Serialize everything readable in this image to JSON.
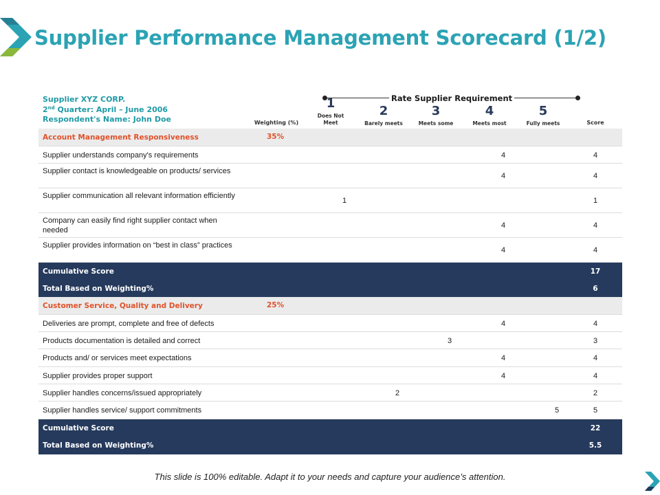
{
  "title": "Supplier Performance Management Scorecard (1/2)",
  "info": {
    "supplier": "Supplier XYZ CORP.",
    "quarter_num": "2",
    "quarter_sup": "nd",
    "quarter_text": " Quarter: April – June 2006",
    "respondent": "Respondent's Name: John Doe"
  },
  "rate_label": "Rate Supplier Requirement",
  "scale": [
    {
      "num": "1",
      "caption": "Does Not Meet"
    },
    {
      "num": "2",
      "caption": "Barely meets"
    },
    {
      "num": "3",
      "caption": "Meets some"
    },
    {
      "num": "4",
      "caption": "Meets most"
    },
    {
      "num": "5",
      "caption": "Fully meets"
    }
  ],
  "headers": {
    "weighting": "Weighting (%)",
    "score": "Score"
  },
  "rows": [
    {
      "type": "sec",
      "label": "Account Management Responsiveness",
      "weight": "35%"
    },
    {
      "type": "item",
      "label": "Supplier understands company's requirements",
      "rating": 4,
      "value": "4",
      "score": "4"
    },
    {
      "type": "item",
      "label": "Supplier contact is knowledgeable on products/ services",
      "rating": 4,
      "value": "4",
      "score": "4"
    },
    {
      "type": "item",
      "label": "Supplier communication all relevant information efficiently",
      "rating": 1,
      "value": "1",
      "score": "1"
    },
    {
      "type": "item",
      "label": "Company can easily find right supplier contact when needed",
      "rating": 4,
      "value": "4",
      "score": "4"
    },
    {
      "type": "item",
      "label": "Supplier provides information on “best in class” practices",
      "rating": 4,
      "value": "4",
      "score": "4"
    },
    {
      "type": "dark",
      "label": "Cumulative Score",
      "score": "17"
    },
    {
      "type": "dark",
      "label": "Total Based on Weighting%",
      "score": "6"
    },
    {
      "type": "sec",
      "label": "Customer Service, Quality and Delivery",
      "weight": "25%"
    },
    {
      "type": "item",
      "label": "Deliveries are prompt, complete and free of defects",
      "rating": 4,
      "value": "4",
      "score": "4"
    },
    {
      "type": "item",
      "label": "Products documentation is detailed and correct",
      "rating": 3,
      "value": "3",
      "score": "3"
    },
    {
      "type": "item",
      "label": "Products and/ or services meet expectations",
      "rating": 4,
      "value": "4",
      "score": "4"
    },
    {
      "type": "item",
      "label": "Supplier provides proper support",
      "rating": 4,
      "value": "4",
      "score": "4"
    },
    {
      "type": "item",
      "label": "Supplier handles concerns/issued appropriately",
      "rating": 2,
      "value": "2",
      "score": "2"
    },
    {
      "type": "item",
      "label": "Supplier handles service/ support commitments",
      "rating": 5,
      "value": "5",
      "score": "5"
    },
    {
      "type": "dark",
      "label": "Cumulative Score",
      "score": "22"
    },
    {
      "type": "dark",
      "label": "Total Based on Weighting%",
      "score": "5.5"
    }
  ],
  "footer": "This slide is 100% editable.  Adapt it to your needs and capture your audience’s attention.",
  "colors": {
    "title": "#2ba3b4",
    "section_text": "#e0522b",
    "dark_row": "#253a5c",
    "info_text": "#1f9aa5"
  },
  "icons": {
    "corner": "chevron-right-icon",
    "next": "next-slide-arrow-icon"
  }
}
